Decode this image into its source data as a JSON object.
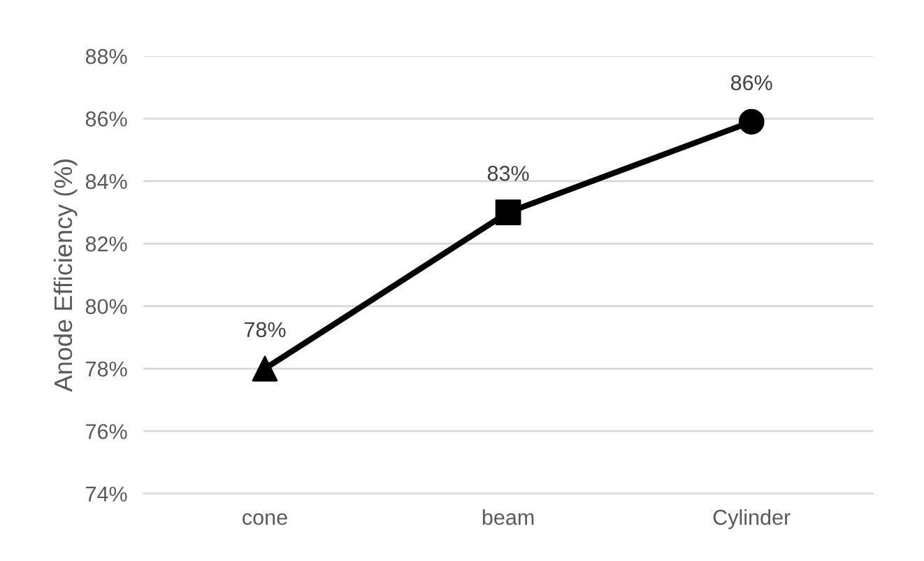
{
  "chart_data": {
    "type": "line",
    "ylabel": "Anode Efficiency (%)",
    "categories": [
      "cone",
      "beam",
      "Cylinder"
    ],
    "series": [
      {
        "color": "#000000",
        "values": [
          78,
          83,
          85.9
        ],
        "marker": "none",
        "value_labels": [
          "78%",
          "83%",
          "86%"
        ]
      },
      {
        "type": "scatter",
        "color": "#000000",
        "x": [
          "cone"
        ],
        "values": [
          78
        ],
        "marker": "triangle"
      },
      {
        "type": "scatter",
        "color": "#000000",
        "x": [
          "beam"
        ],
        "values": [
          83
        ],
        "marker": "square"
      },
      {
        "type": "scatter",
        "color": "#000000",
        "x": [
          "Cylinder"
        ],
        "values": [
          85.9
        ],
        "marker": "circle"
      }
    ],
    "ylim": [
      74,
      88
    ],
    "yticks": [
      {
        "value": 74,
        "label": "74%"
      },
      {
        "value": 76,
        "label": "76%"
      },
      {
        "value": 78,
        "label": "78%"
      },
      {
        "value": 80,
        "label": "80%"
      },
      {
        "value": 82,
        "label": "82%"
      },
      {
        "value": 84,
        "label": "84%"
      },
      {
        "value": 86,
        "label": "86%"
      },
      {
        "value": 88,
        "label": "88%"
      }
    ],
    "grid": "y",
    "legend": false
  }
}
